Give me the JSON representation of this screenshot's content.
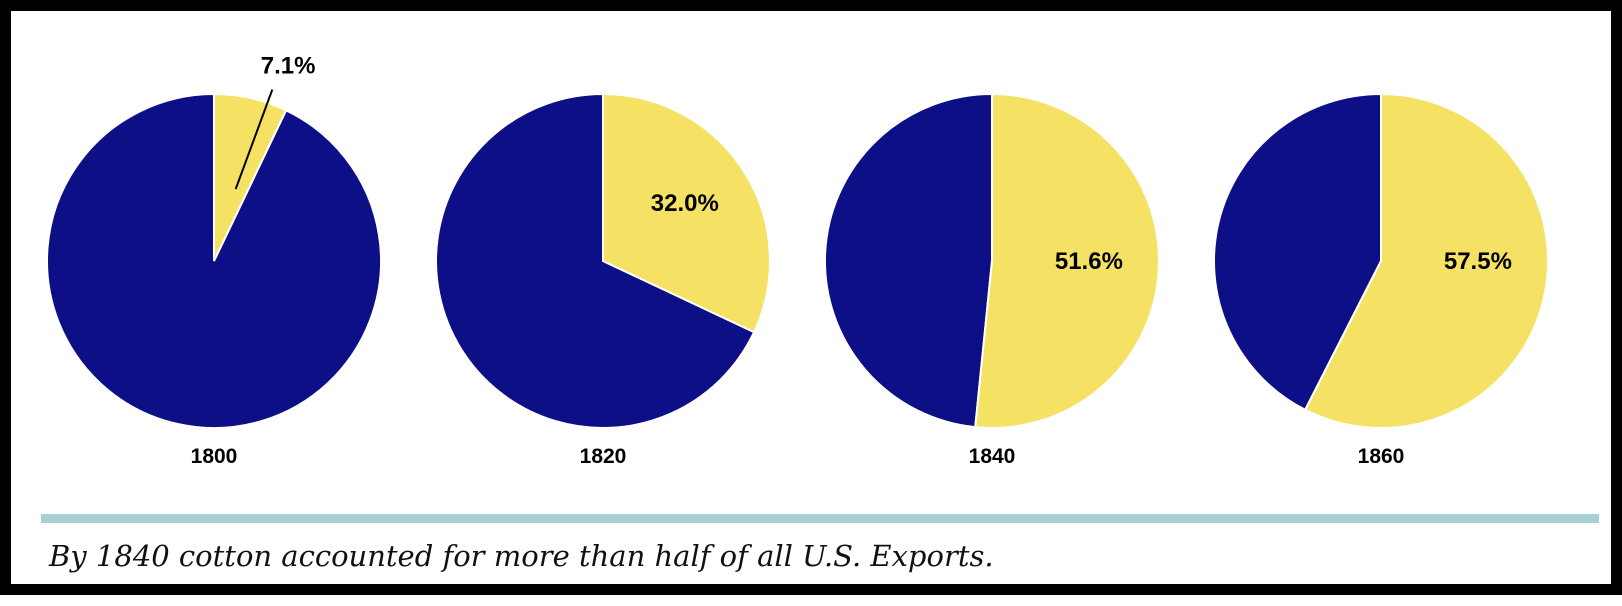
{
  "chart_data": {
    "type": "pie",
    "title": "",
    "caption": "By 1840 cotton accounted for more than half of all U.S. Exports.",
    "colors": {
      "highlight": "#f5e264",
      "rest": "#0d0f86",
      "stroke": "#ffffff"
    },
    "pies": [
      {
        "year": "1800",
        "value": 7.1,
        "label": "7.1%"
      },
      {
        "year": "1820",
        "value": 32.0,
        "label": "32.0%"
      },
      {
        "year": "1840",
        "value": 51.6,
        "label": "51.6%"
      },
      {
        "year": "1860",
        "value": 57.5,
        "label": "57.5%"
      }
    ]
  }
}
